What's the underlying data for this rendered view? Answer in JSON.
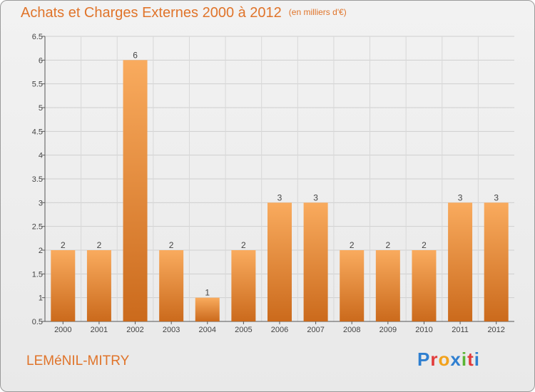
{
  "header": {
    "title": "Achats et Charges Externes 2000 à 2012",
    "unit": "(en milliers d'€)"
  },
  "footer": {
    "city": "LEMéNIL-MITRY",
    "logo_parts": [
      "P",
      "r",
      "o",
      "x",
      "i",
      "t",
      "i"
    ],
    "logo_colors": [
      "#2f7fd0",
      "#e23b3b",
      "#f2a21c",
      "#2f7fd0",
      "#5ab534",
      "#e23b3b",
      "#2f7fd0"
    ]
  },
  "colors": {
    "bar_top": "#f9ab5e",
    "bar_bottom": "#cb6a1c",
    "title": "#e0742a"
  },
  "chart_data": {
    "type": "bar",
    "categories": [
      "2000",
      "2001",
      "2002",
      "2003",
      "2004",
      "2005",
      "2006",
      "2007",
      "2008",
      "2009",
      "2010",
      "2011",
      "2012"
    ],
    "values": [
      2,
      2,
      6,
      2,
      1,
      2,
      3,
      3,
      2,
      2,
      2,
      3,
      3
    ],
    "data_labels": [
      "2",
      "2",
      "6",
      "2",
      "1",
      "2",
      "3",
      "3",
      "2",
      "2",
      "2",
      "3",
      "3"
    ],
    "yticks": [
      0.5,
      1,
      1.5,
      2,
      2.5,
      3,
      3.5,
      4,
      4.5,
      5,
      5.5,
      6,
      6.5
    ],
    "ytick_labels": [
      "0.5",
      "1",
      "1.5",
      "2",
      "2.5",
      "3",
      "3.5",
      "4",
      "4.5",
      "5",
      "5.5",
      "6",
      "6.5"
    ],
    "ylim": [
      0.5,
      6.5
    ],
    "grid": true
  }
}
